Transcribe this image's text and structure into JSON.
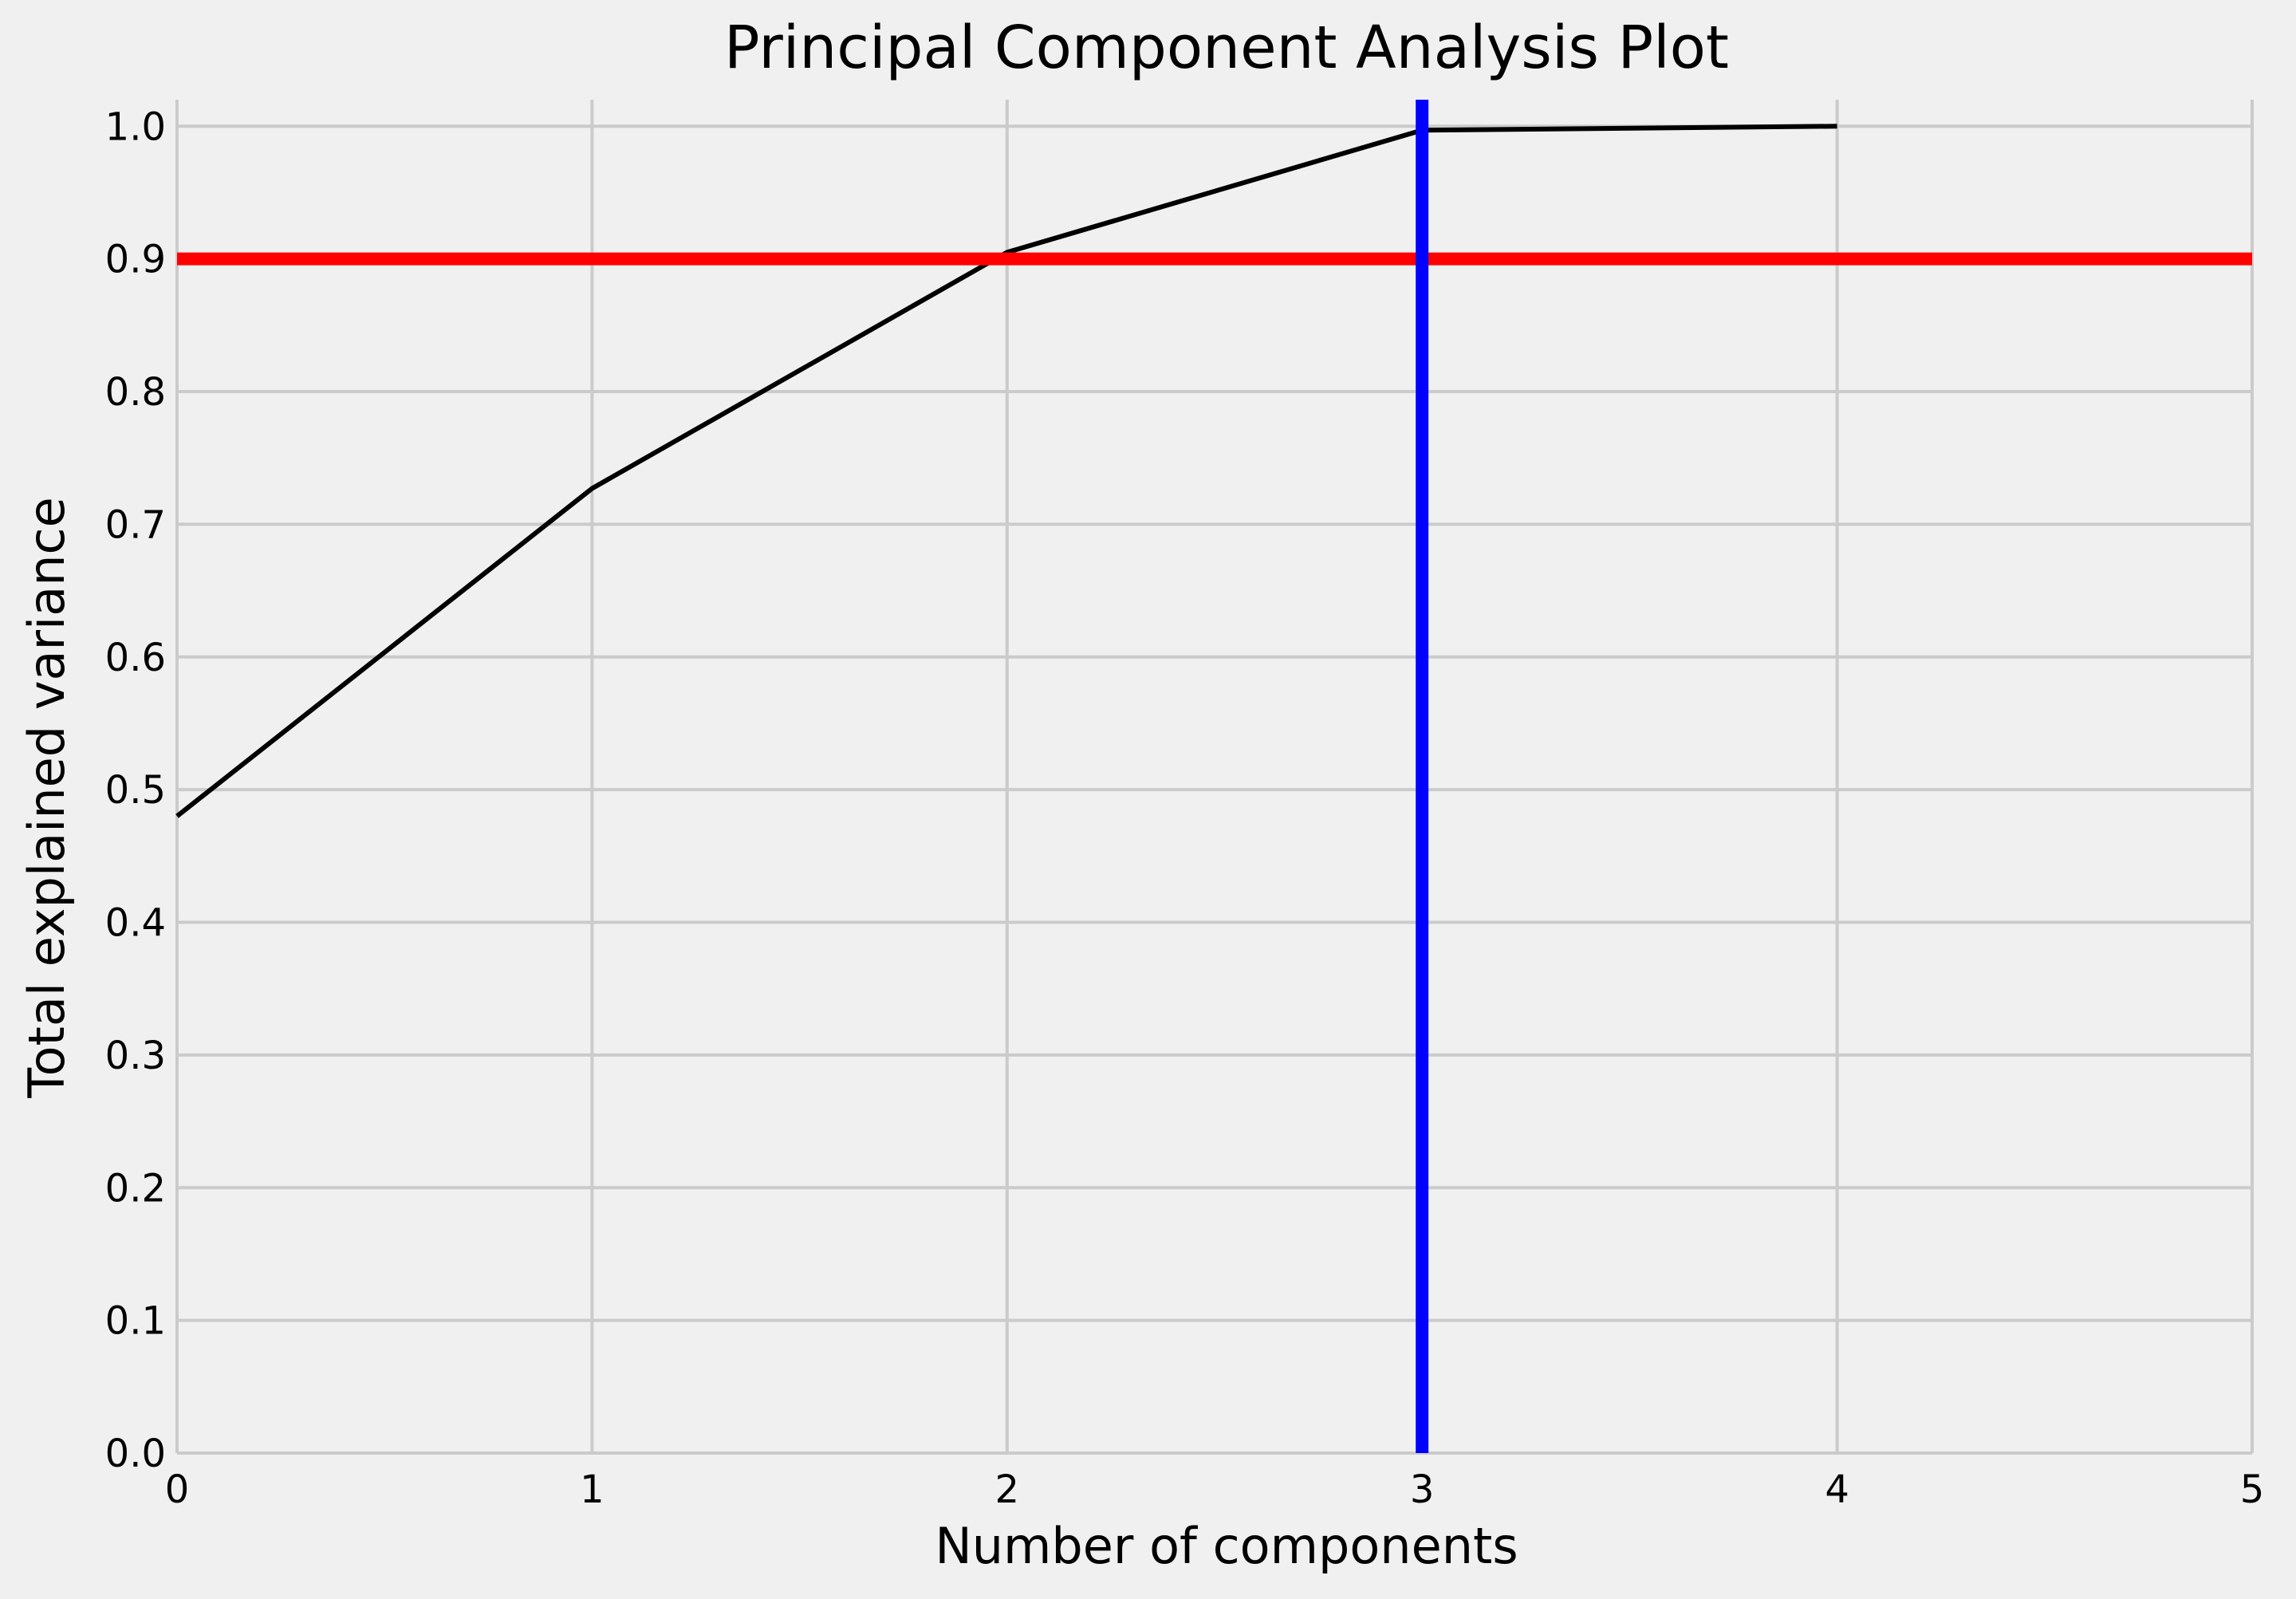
{
  "chart_data": {
    "type": "line",
    "title": "Principal Component Analysis Plot",
    "xlabel": "Number of components",
    "ylabel": "Total explained variance",
    "xlim": [
      0,
      5
    ],
    "ylim": [
      0,
      1.02
    ],
    "x_ticks": [
      "0",
      "1",
      "2",
      "3",
      "4",
      "5"
    ],
    "y_ticks": [
      "0.0",
      "0.1",
      "0.2",
      "0.3",
      "0.4",
      "0.5",
      "0.6",
      "0.7",
      "0.8",
      "0.9",
      "1.0"
    ],
    "grid": true,
    "series": [
      {
        "x": [
          0,
          1,
          2,
          3,
          4
        ],
        "values": [
          0.48,
          0.727,
          0.905,
          0.997,
          1.0
        ],
        "color": "#000000"
      }
    ],
    "reference_lines": [
      {
        "orientation": "horizontal",
        "value": 0.9,
        "color": "#ff0000"
      },
      {
        "orientation": "vertical",
        "value": 3,
        "color": "#0000ff"
      }
    ],
    "background_color": "#f0f0f0",
    "grid_color": "#cbcbcb"
  }
}
